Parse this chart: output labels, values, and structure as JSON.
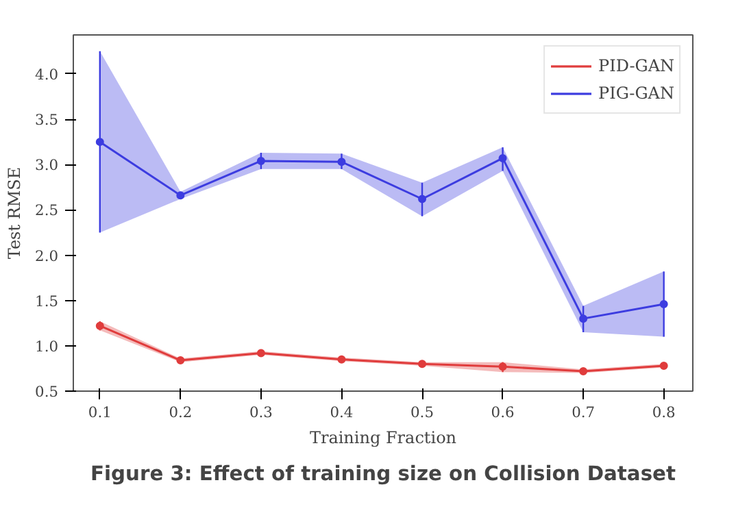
{
  "chart_data": {
    "type": "line",
    "xlabel": "Training Fraction",
    "ylabel": "Test RMSE",
    "x": [
      0.1,
      0.2,
      0.3,
      0.4,
      0.5,
      0.6,
      0.7,
      0.8
    ],
    "series": [
      {
        "name": "PID-GAN",
        "color": "#e03c3c",
        "values": [
          1.22,
          0.84,
          0.92,
          0.85,
          0.8,
          0.77,
          0.72,
          0.78
        ],
        "lower": [
          1.17,
          0.82,
          0.9,
          0.83,
          0.78,
          0.71,
          0.7,
          0.76
        ],
        "upper": [
          1.27,
          0.86,
          0.94,
          0.87,
          0.82,
          0.82,
          0.74,
          0.8
        ],
        "errors": [
          [
            1.17,
            1.27
          ],
          [
            0.82,
            0.86
          ],
          [
            0.9,
            0.94
          ],
          [
            0.83,
            0.87
          ],
          [
            0.78,
            0.82
          ],
          [
            0.71,
            0.82
          ],
          [
            0.7,
            0.74
          ],
          [
            0.76,
            0.8
          ]
        ]
      },
      {
        "name": "PIG-GAN",
        "color": "#3c3ce0",
        "values": [
          3.25,
          2.66,
          3.04,
          3.03,
          2.62,
          3.07,
          1.3,
          1.46
        ],
        "lower": [
          2.25,
          2.62,
          2.95,
          2.95,
          2.43,
          2.93,
          1.15,
          1.1
        ],
        "upper": [
          4.25,
          2.7,
          3.13,
          3.12,
          2.8,
          3.19,
          1.44,
          1.82
        ],
        "errors": [
          [
            2.25,
            4.25
          ],
          [
            2.62,
            2.7
          ],
          [
            2.95,
            3.13
          ],
          [
            2.95,
            3.12
          ],
          [
            2.43,
            2.8
          ],
          [
            2.93,
            3.19
          ],
          [
            1.15,
            1.44
          ],
          [
            1.1,
            1.82
          ]
        ]
      }
    ],
    "xlim": [
      0.067,
      0.836
    ],
    "ylim": [
      0.5,
      4.43
    ],
    "xticks": [
      0.1,
      0.2,
      0.3,
      0.4,
      0.5,
      0.6,
      0.7,
      0.8
    ],
    "yticks": [
      0.5,
      {
        "value": 1,
        "label": "1.0"
      },
      1.5,
      {
        "value": 2,
        "label": "2.0"
      },
      2.5,
      {
        "value": 3,
        "label": "3.0"
      },
      3.5,
      {
        "value": 4,
        "label": "4.0"
      }
    ],
    "legend": "top right",
    "marker": "circle",
    "grid": false,
    "annotations": [
      "Figure 3: Effect of training size on Collision Dataset"
    ]
  }
}
